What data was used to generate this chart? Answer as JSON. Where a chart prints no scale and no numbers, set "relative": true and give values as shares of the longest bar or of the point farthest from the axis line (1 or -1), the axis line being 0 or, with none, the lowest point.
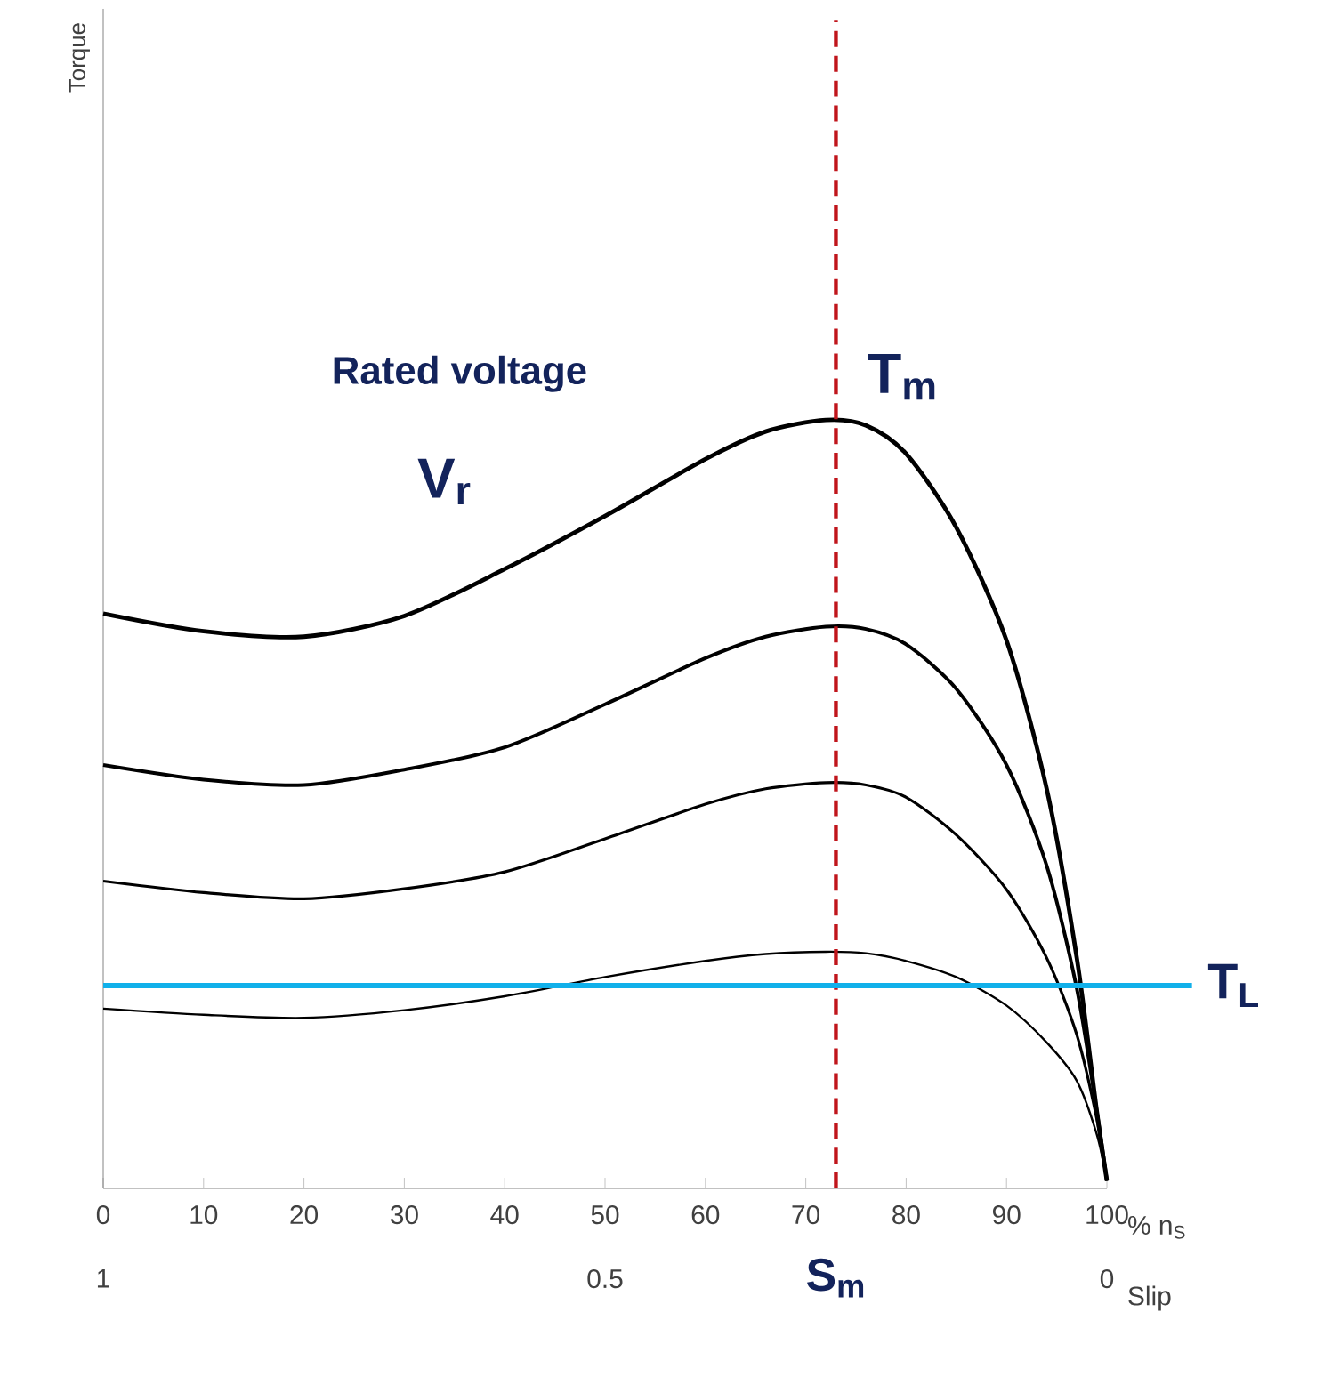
{
  "chart_data": {
    "type": "line",
    "relative": true,
    "xlabel": "% n$_{S}$",
    "x2label": "Slip",
    "xlim": [
      0,
      100
    ],
    "xticks": [
      0,
      10,
      20,
      30,
      40,
      50,
      60,
      70,
      80,
      90,
      100
    ],
    "x2lim": [
      1,
      0
    ],
    "x2ticks": [
      1,
      0.5,
      0
    ],
    "x": [
      0,
      10,
      20,
      30,
      40,
      50,
      60,
      66,
      72,
      76,
      80,
      85,
      90,
      94,
      97,
      99,
      100
    ],
    "series": [
      {
        "color": "#000000",
        "values": [
          0.748,
          0.725,
          0.718,
          0.745,
          0.806,
          0.875,
          0.949,
          0.985,
          1.0,
          0.993,
          0.956,
          0.86,
          0.713,
          0.52,
          0.3,
          0.1,
          0.01
        ]
      },
      {
        "color": "#000000",
        "values": [
          0.551,
          0.532,
          0.525,
          0.545,
          0.574,
          0.63,
          0.69,
          0.718,
          0.731,
          0.728,
          0.708,
          0.65,
          0.551,
          0.42,
          0.26,
          0.1,
          0.01
        ]
      },
      {
        "color": "#000000",
        "values": [
          0.4,
          0.385,
          0.377,
          0.39,
          0.412,
          0.455,
          0.5,
          0.52,
          0.528,
          0.525,
          0.509,
          0.46,
          0.389,
          0.3,
          0.2,
          0.09,
          0.01
        ]
      },
      {
        "color": "#000000",
        "values": [
          0.234,
          0.226,
          0.222,
          0.232,
          0.25,
          0.275,
          0.296,
          0.305,
          0.308,
          0.306,
          0.296,
          0.275,
          0.238,
          0.19,
          0.14,
          0.07,
          0.01
        ]
      }
    ],
    "ref_lines": [
      {
        "axis": "x",
        "value": 73,
        "label": "S$_{m}$",
        "color": "#c0151b",
        "line_style": "dashed"
      },
      {
        "axis": "y",
        "value": 0.264,
        "label": "T$_{L}$",
        "color": "#11b0ea",
        "line_style": "solid"
      }
    ],
    "annotations": [
      "Rated voltage",
      "V$_{r}$",
      {
        "text": "T$_{m}$",
        "x": 73,
        "y": 1.0
      },
      "Torque"
    ],
    "grid": false
  }
}
